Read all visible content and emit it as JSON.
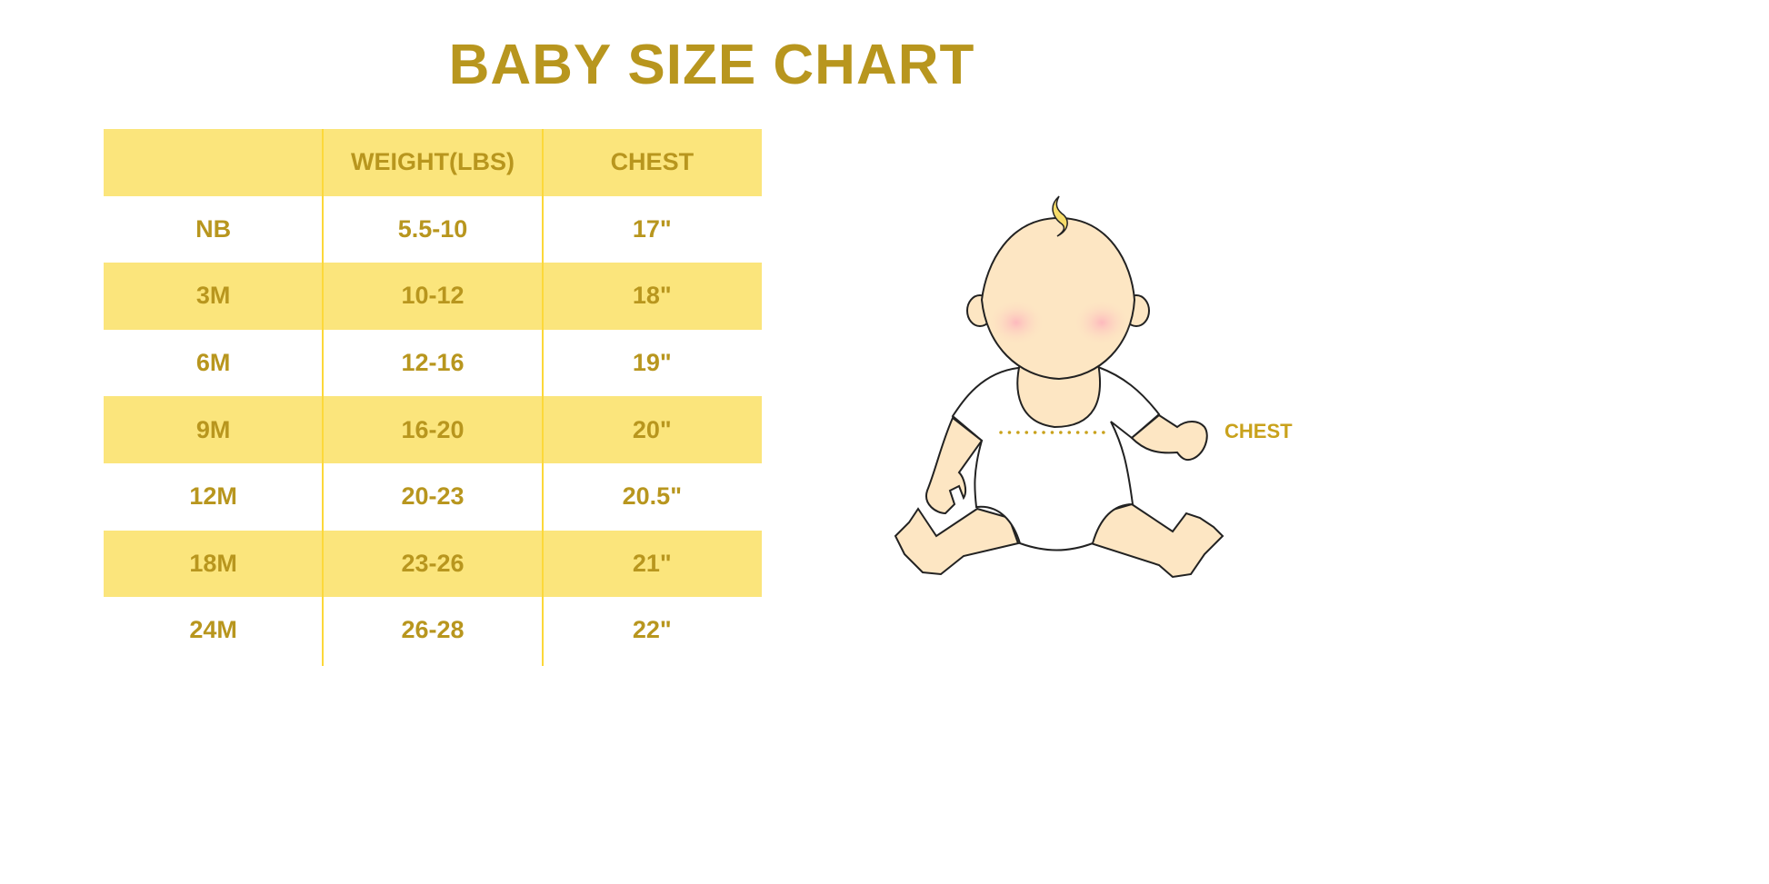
{
  "title": "BABY SIZE CHART",
  "table": {
    "headers": [
      "",
      "WEIGHT(LBS)",
      "CHEST"
    ],
    "rows": [
      [
        "NB",
        "5.5-10",
        "17\""
      ],
      [
        "3M",
        "10-12",
        "18\""
      ],
      [
        "6M",
        "12-16",
        "19\""
      ],
      [
        "9M",
        "16-20",
        "20\""
      ],
      [
        "12M",
        "20-23",
        "20.5\""
      ],
      [
        "18M",
        "23-26",
        "21\""
      ],
      [
        "24M",
        "26-28",
        "22\""
      ]
    ]
  },
  "illustration": {
    "label": "CHEST",
    "icon": "baby-illustration"
  },
  "colors": {
    "text": "#b8961e",
    "stripe": "#fbe57c",
    "divider": "#fcd83a"
  }
}
